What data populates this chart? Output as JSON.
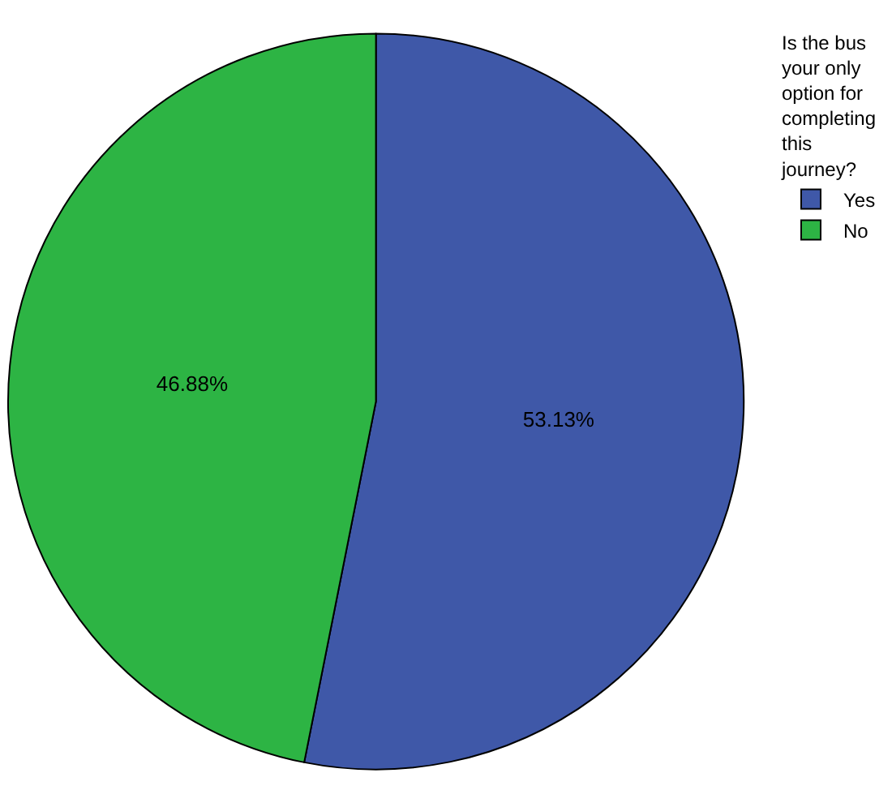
{
  "chart_data": {
    "type": "pie",
    "legend_title": "Is the bus\nyour only\noption for\ncompleting\nthis\njourney?",
    "categories": [
      "Yes",
      "No"
    ],
    "values": [
      53.13,
      46.88
    ],
    "colors": [
      "#3f58a8",
      "#2db444"
    ],
    "value_labels": [
      "53.13%",
      "46.88%"
    ],
    "legend": "top right"
  }
}
